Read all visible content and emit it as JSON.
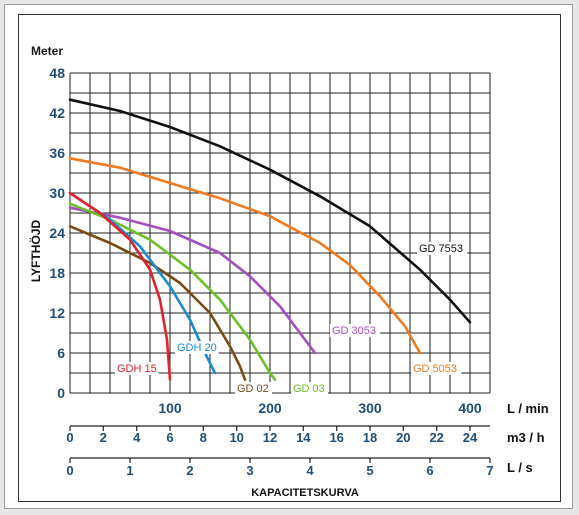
{
  "chart_data": {
    "type": "line",
    "title": "",
    "y_unit": "Meter",
    "ylabel": "LYFTHÖJD",
    "xlabel": "KAPACITETSKURVA",
    "ylim": [
      0,
      48
    ],
    "y_ticks": [
      "0",
      "6",
      "12",
      "18",
      "24",
      "30",
      "36",
      "42",
      "48"
    ],
    "xlim": [
      0,
      420
    ],
    "x_axes": [
      {
        "unit": "L / min",
        "ticks": [
          {
            "label": "100",
            "at": 100
          },
          {
            "label": "200",
            "at": 200
          },
          {
            "label": "300",
            "at": 300
          },
          {
            "label": "400",
            "at": 400
          }
        ]
      },
      {
        "unit": "m3 / h",
        "ticks": [
          {
            "label": "0",
            "at": 0
          },
          {
            "label": "2",
            "at": 33.3
          },
          {
            "label": "4",
            "at": 66.7
          },
          {
            "label": "6",
            "at": 100
          },
          {
            "label": "8",
            "at": 133.3
          },
          {
            "label": "10",
            "at": 166.7
          },
          {
            "label": "12",
            "at": 200
          },
          {
            "label": "14",
            "at": 233.3
          },
          {
            "label": "16",
            "at": 266.7
          },
          {
            "label": "18",
            "at": 300
          },
          {
            "label": "20",
            "at": 333.3
          },
          {
            "label": "22",
            "at": 366.7
          },
          {
            "label": "24",
            "at": 400
          }
        ]
      },
      {
        "unit": "L / s",
        "ticks": [
          {
            "label": "0",
            "at": 0
          },
          {
            "label": "1",
            "at": 60
          },
          {
            "label": "2",
            "at": 120
          },
          {
            "label": "3",
            "at": 180
          },
          {
            "label": "4",
            "at": 240
          },
          {
            "label": "5",
            "at": 300
          },
          {
            "label": "6",
            "at": 360
          },
          {
            "label": "7",
            "at": 420
          }
        ]
      }
    ],
    "grid": true,
    "series": [
      {
        "name": "GD 7553",
        "color": "#111111",
        "points": [
          [
            0,
            44
          ],
          [
            50,
            42.3
          ],
          [
            100,
            39.9
          ],
          [
            150,
            37
          ],
          [
            200,
            33.5
          ],
          [
            250,
            29.5
          ],
          [
            300,
            25
          ],
          [
            350,
            18.5
          ],
          [
            380,
            14
          ],
          [
            400,
            10.6
          ]
        ]
      },
      {
        "name": "GD 5053",
        "color": "#f07a1f",
        "points": [
          [
            0,
            35.2
          ],
          [
            50,
            33.8
          ],
          [
            100,
            31.5
          ],
          [
            150,
            29.2
          ],
          [
            200,
            26.5
          ],
          [
            250,
            22.5
          ],
          [
            280,
            19.2
          ],
          [
            310,
            14.5
          ],
          [
            335,
            10
          ],
          [
            350,
            6
          ]
        ]
      },
      {
        "name": "GD 3053",
        "color": "#a54fbf",
        "points": [
          [
            0,
            27.8
          ],
          [
            50,
            26.3
          ],
          [
            100,
            24.3
          ],
          [
            150,
            21
          ],
          [
            180,
            17.5
          ],
          [
            210,
            13
          ],
          [
            230,
            9
          ],
          [
            245,
            6
          ]
        ]
      },
      {
        "name": "GD 03",
        "color": "#6ebf2a",
        "points": [
          [
            0,
            28.4
          ],
          [
            40,
            26
          ],
          [
            80,
            23
          ],
          [
            120,
            18.5
          ],
          [
            150,
            14
          ],
          [
            180,
            8
          ],
          [
            200,
            3
          ],
          [
            205,
            2
          ]
        ]
      },
      {
        "name": "GD 02",
        "color": "#7a4a15",
        "points": [
          [
            0,
            25
          ],
          [
            40,
            22.5
          ],
          [
            80,
            19.5
          ],
          [
            110,
            16.5
          ],
          [
            140,
            12
          ],
          [
            160,
            7
          ],
          [
            170,
            4
          ],
          [
            175,
            2
          ]
        ]
      },
      {
        "name": "GDH 20",
        "color": "#1e8bd0",
        "points": [
          [
            0,
            30
          ],
          [
            40,
            26
          ],
          [
            70,
            22
          ],
          [
            100,
            16
          ],
          [
            120,
            11
          ],
          [
            135,
            6
          ],
          [
            145,
            3
          ]
        ]
      },
      {
        "name": "GDH 15",
        "color": "#e0222c",
        "points": [
          [
            0,
            30
          ],
          [
            30,
            27
          ],
          [
            60,
            23
          ],
          [
            80,
            18.5
          ],
          [
            90,
            14
          ],
          [
            97,
            8
          ],
          [
            100,
            2
          ]
        ]
      }
    ]
  }
}
